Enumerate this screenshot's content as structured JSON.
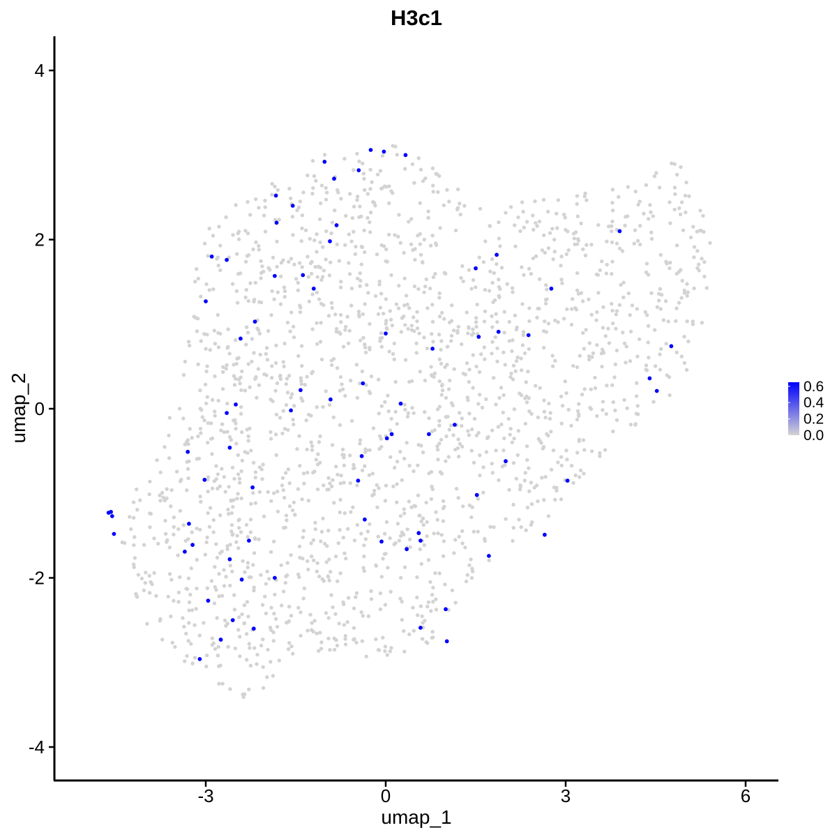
{
  "chart_data": {
    "type": "scatter",
    "title": "H3c1",
    "xlabel": "umap_1",
    "ylabel": "umap_2",
    "xlim": [
      -5.7,
      6.6
    ],
    "ylim": [
      -4.3,
      4.4
    ],
    "xticks": [
      {
        "value": -3,
        "label": "-3"
      },
      {
        "value": 0,
        "label": "0"
      },
      {
        "value": 3,
        "label": "3"
      },
      {
        "value": 6,
        "label": "6"
      }
    ],
    "yticks": [
      {
        "value": -4,
        "label": "-4"
      },
      {
        "value": -2,
        "label": "-2"
      },
      {
        "value": 0,
        "label": "0"
      },
      {
        "value": 2,
        "label": "2"
      },
      {
        "value": 4,
        "label": "4"
      }
    ],
    "grid": false,
    "legend": {
      "position": "right",
      "type": "colorbar",
      "range": [
        0.0,
        0.65
      ],
      "labels": [
        "0.6",
        "0.4",
        "0.2",
        "0.0"
      ],
      "label_values": [
        0.6,
        0.4,
        0.2,
        0.0
      ]
    },
    "colors": {
      "low": "#d3d3d3",
      "high": "#0000ff"
    },
    "background_cells_approx": 1900,
    "expressing_cells": [
      [
        -0.25,
        3.06
      ],
      [
        -0.03,
        3.04
      ],
      [
        0.33,
        3.0
      ],
      [
        -1.02,
        2.92
      ],
      [
        -0.45,
        2.82
      ],
      [
        -0.86,
        2.72
      ],
      [
        -1.83,
        2.52
      ],
      [
        -1.55,
        2.4
      ],
      [
        -1.82,
        2.2
      ],
      [
        -0.82,
        2.17
      ],
      [
        -0.93,
        1.98
      ],
      [
        -2.9,
        1.8
      ],
      [
        -2.65,
        1.76
      ],
      [
        1.5,
        1.66
      ],
      [
        1.85,
        1.82
      ],
      [
        -1.85,
        1.57
      ],
      [
        -1.38,
        1.58
      ],
      [
        -1.2,
        1.42
      ],
      [
        2.76,
        1.42
      ],
      [
        3.9,
        2.1
      ],
      [
        -3.0,
        1.27
      ],
      [
        -2.18,
        1.03
      ],
      [
        0.0,
        0.89
      ],
      [
        1.88,
        0.91
      ],
      [
        2.38,
        0.87
      ],
      [
        1.55,
        0.85
      ],
      [
        -2.42,
        0.83
      ],
      [
        0.78,
        0.71
      ],
      [
        4.76,
        0.74
      ],
      [
        4.4,
        0.36
      ],
      [
        4.52,
        0.21
      ],
      [
        -0.38,
        0.3
      ],
      [
        -1.42,
        0.22
      ],
      [
        -0.92,
        0.11
      ],
      [
        0.25,
        0.06
      ],
      [
        -2.5,
        0.05
      ],
      [
        -1.58,
        -0.02
      ],
      [
        -2.65,
        -0.05
      ],
      [
        1.15,
        -0.19
      ],
      [
        0.1,
        -0.3
      ],
      [
        0.72,
        -0.3
      ],
      [
        0.02,
        -0.35
      ],
      [
        -2.6,
        -0.46
      ],
      [
        -3.3,
        -0.51
      ],
      [
        -0.4,
        -0.56
      ],
      [
        2.0,
        -0.62
      ],
      [
        -0.46,
        -0.85
      ],
      [
        -3.02,
        -0.84
      ],
      [
        3.03,
        -0.85
      ],
      [
        -2.22,
        -0.93
      ],
      [
        1.52,
        -1.02
      ],
      [
        -4.62,
        -1.23
      ],
      [
        -4.58,
        -1.22
      ],
      [
        -4.56,
        -1.27
      ],
      [
        -0.35,
        -1.31
      ],
      [
        -3.28,
        -1.36
      ],
      [
        -4.53,
        -1.48
      ],
      [
        0.55,
        -1.47
      ],
      [
        -3.22,
        -1.61
      ],
      [
        -2.28,
        -1.56
      ],
      [
        -0.07,
        -1.57
      ],
      [
        0.58,
        -1.56
      ],
      [
        2.65,
        -1.49
      ],
      [
        -3.35,
        -1.69
      ],
      [
        0.35,
        -1.66
      ],
      [
        1.72,
        -1.74
      ],
      [
        -2.6,
        -1.78
      ],
      [
        -2.4,
        -2.02
      ],
      [
        -1.85,
        -2.0
      ],
      [
        -2.96,
        -2.27
      ],
      [
        1.0,
        -2.37
      ],
      [
        -2.55,
        -2.5
      ],
      [
        -2.2,
        -2.6
      ],
      [
        0.58,
        -2.59
      ],
      [
        -2.75,
        -2.73
      ],
      [
        1.02,
        -2.75
      ],
      [
        -3.1,
        -2.96
      ]
    ]
  }
}
